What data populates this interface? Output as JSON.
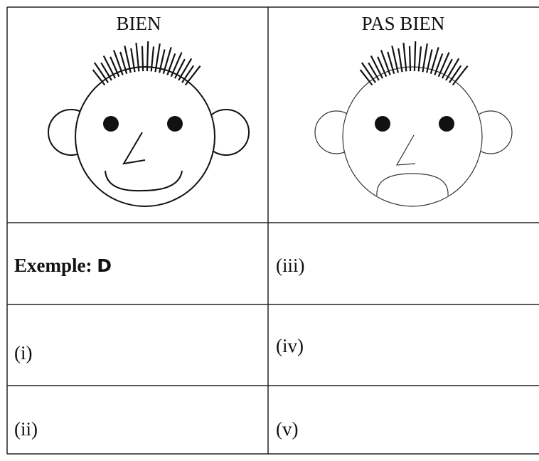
{
  "table": {
    "headers": [
      "BIEN",
      "PAS BIEN"
    ],
    "example": {
      "label": "Exemple:",
      "answer": "D",
      "right": "(iii)"
    },
    "rows": [
      [
        "(i)",
        "(iv)"
      ],
      [
        "(ii)",
        "(v)"
      ]
    ]
  }
}
